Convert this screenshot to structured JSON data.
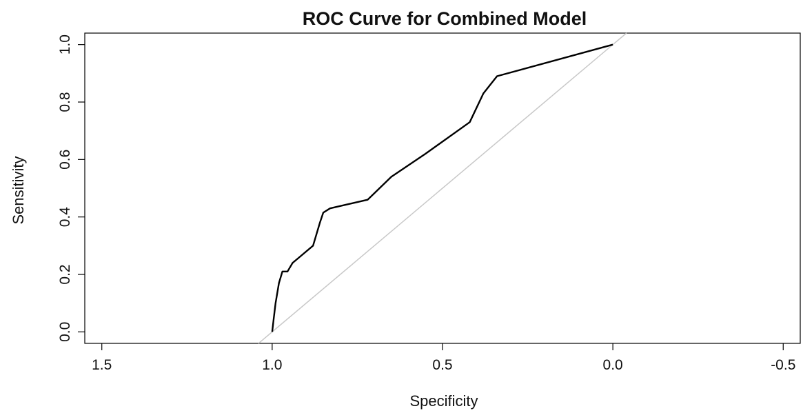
{
  "chart_data": {
    "type": "line",
    "title": "ROC Curve for Combined Model",
    "xlabel": "Specificity",
    "ylabel": "Sensitivity",
    "xlim": [
      1.55,
      -0.55
    ],
    "ylim": [
      -0.04,
      1.04
    ],
    "x_ticks": [
      1.5,
      1.0,
      0.5,
      0.0,
      -0.5
    ],
    "x_tick_labels": [
      "1.5",
      "1.0",
      "0.5",
      "0.0",
      "-0.5"
    ],
    "y_ticks": [
      0.0,
      0.2,
      0.4,
      0.6,
      0.8,
      1.0
    ],
    "y_tick_labels": [
      "0.0",
      "0.2",
      "0.4",
      "0.6",
      "0.8",
      "1.0"
    ],
    "grid": false,
    "reference_line": {
      "x": [
        1.0,
        0.0
      ],
      "y": [
        0.0,
        1.0
      ],
      "color": "#c8c8c8"
    },
    "series": [
      {
        "color": "#000000",
        "x": [
          1.0,
          0.995,
          0.99,
          0.98,
          0.97,
          0.955,
          0.94,
          0.92,
          0.88,
          0.86,
          0.85,
          0.83,
          0.72,
          0.65,
          0.55,
          0.42,
          0.38,
          0.34,
          0.0
        ],
        "y": [
          0.0,
          0.05,
          0.1,
          0.17,
          0.21,
          0.21,
          0.24,
          0.26,
          0.3,
          0.38,
          0.415,
          0.43,
          0.46,
          0.54,
          0.62,
          0.73,
          0.83,
          0.89,
          1.0
        ]
      }
    ]
  }
}
